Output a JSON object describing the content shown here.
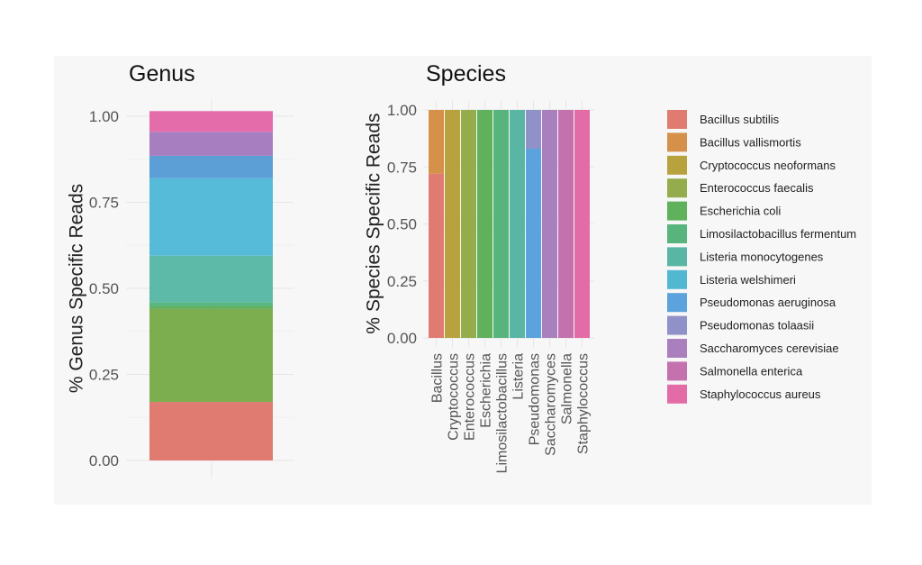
{
  "chart_data": [
    {
      "type": "bar",
      "stacked": true,
      "title": "Genus",
      "ylabel": "% Genus Specific Reads",
      "ylim": [
        0,
        1
      ],
      "yticks": [
        "0.00",
        "0.25",
        "0.50",
        "0.75",
        "1.00"
      ],
      "categories": [
        ""
      ],
      "series": [
        {
          "name": "Bacillus",
          "color": "#e07b72",
          "values": [
            0.17
          ]
        },
        {
          "name": "Enterococcus",
          "color": "#7cae4f",
          "values": [
            0.27
          ]
        },
        {
          "name": "Escherichia",
          "color": "#5fb161",
          "values": [
            0.01
          ]
        },
        {
          "name": "Limosilactobacillus",
          "color": "#56b784",
          "values": [
            0.01
          ]
        },
        {
          "name": "Listeria",
          "color": "#5ebaa8",
          "values": [
            0.135
          ]
        },
        {
          "name": "Listeria welshimeri",
          "color": "#55bbd9",
          "values": [
            0.225
          ]
        },
        {
          "name": "Pseudomonas",
          "color": "#5c9ed6",
          "values": [
            0.065
          ]
        },
        {
          "name": "Saccharomyces",
          "color": "#a77fc0",
          "values": [
            0.07
          ]
        },
        {
          "name": "Staphylococcus",
          "color": "#e46cab",
          "values": [
            0.06
          ]
        }
      ]
    },
    {
      "type": "bar",
      "stacked": true,
      "normalized": true,
      "title": "Species",
      "ylabel": "% Species Specific Reads",
      "ylim": [
        0,
        1
      ],
      "yticks": [
        "0.00",
        "0.25",
        "0.50",
        "0.75",
        "1.00"
      ],
      "categories": [
        "Bacillus",
        "Cryptococcus",
        "Enterococcus",
        "Escherichia",
        "Limosilactobacillus",
        "Listeria",
        "Pseudomonas",
        "Saccharomyces",
        "Salmonella",
        "Staphylococcus"
      ],
      "series": [
        {
          "name": "Bacillus subtilis",
          "color": "#e07b72",
          "values": [
            0.72,
            0,
            0,
            0,
            0,
            0,
            0,
            0,
            0,
            0
          ]
        },
        {
          "name": "Bacillus vallismortis",
          "color": "#d5914a",
          "values": [
            0.28,
            0,
            0,
            0,
            0,
            0,
            0,
            0,
            0,
            0
          ]
        },
        {
          "name": "Cryptococcus neoformans",
          "color": "#b8a23e",
          "values": [
            0,
            1,
            0,
            0,
            0,
            0,
            0,
            0,
            0,
            0
          ]
        },
        {
          "name": "Enterococcus faecalis",
          "color": "#95ac4c",
          "values": [
            0,
            0,
            1,
            0,
            0,
            0,
            0,
            0,
            0,
            0
          ]
        },
        {
          "name": "Escherichia coli",
          "color": "#5fb15b",
          "values": [
            0,
            0,
            0,
            1,
            0,
            0,
            0,
            0,
            0,
            0
          ]
        },
        {
          "name": "Limosilactobacillus fermentum",
          "color": "#57b47c",
          "values": [
            0,
            0,
            0,
            0,
            1,
            0,
            0,
            0,
            0,
            0
          ]
        },
        {
          "name": "Listeria monocytogenes",
          "color": "#5ab6a4",
          "values": [
            0,
            0,
            0,
            0,
            0,
            1,
            0,
            0,
            0,
            0
          ]
        },
        {
          "name": "Listeria welshimeri",
          "color": "#52b7d1",
          "values": [
            0,
            0,
            0,
            0,
            0,
            0,
            0,
            0,
            0,
            0
          ]
        },
        {
          "name": "Pseudomonas aeruginosa",
          "color": "#5ca2dc",
          "values": [
            0,
            0,
            0,
            0,
            0,
            0,
            0.83,
            0,
            0,
            0
          ]
        },
        {
          "name": "Pseudomonas tolaasii",
          "color": "#9191c9",
          "values": [
            0,
            0,
            0,
            0,
            0,
            0,
            0.17,
            0,
            0,
            0
          ]
        },
        {
          "name": "Saccharomyces cerevisiae",
          "color": "#a97fbd",
          "values": [
            0,
            0,
            0,
            0,
            0,
            0,
            0,
            1,
            0,
            0
          ]
        },
        {
          "name": "Salmonella enterica",
          "color": "#c472ad",
          "values": [
            0,
            0,
            0,
            0,
            0,
            0,
            0,
            0,
            1,
            0
          ]
        },
        {
          "name": "Staphylococcus aureus",
          "color": "#e46ca6",
          "values": [
            0,
            0,
            0,
            0,
            0,
            0,
            0,
            0,
            0,
            1
          ]
        }
      ],
      "legend": "right"
    }
  ]
}
